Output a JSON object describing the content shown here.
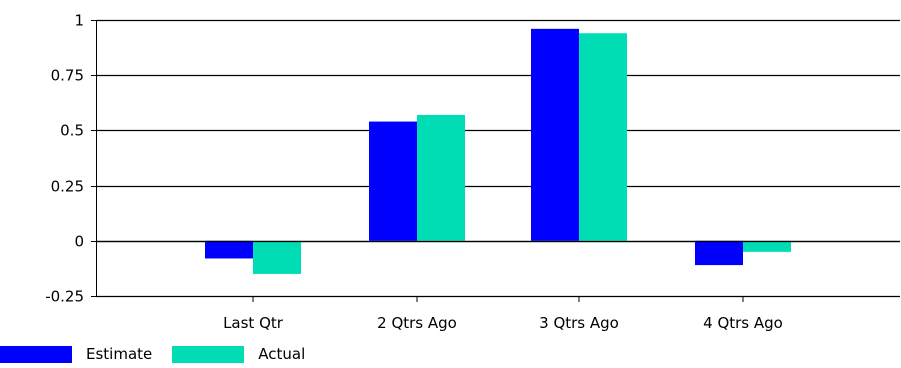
{
  "chart_data": {
    "type": "bar",
    "categories": [
      "Last Qtr",
      "2 Qtrs Ago",
      "3 Qtrs Ago",
      "4 Qtrs Ago"
    ],
    "series": [
      {
        "name": "Estimate",
        "values": [
          -0.08,
          0.54,
          0.96,
          -0.11
        ],
        "color": "#0000ff"
      },
      {
        "name": "Actual",
        "values": [
          -0.15,
          0.57,
          0.94,
          -0.05
        ],
        "color": "#00ddb4"
      }
    ],
    "title": "",
    "xlabel": "",
    "ylabel": "",
    "ylim": [
      -0.25,
      1
    ],
    "yticks": [
      1,
      0.75,
      0.5,
      0.25,
      0,
      -0.25
    ],
    "ytick_labels": [
      "1",
      "0.75",
      "0.5",
      "0.25",
      "0",
      "-0.25"
    ],
    "grid": true,
    "legend": "bottom-left"
  }
}
